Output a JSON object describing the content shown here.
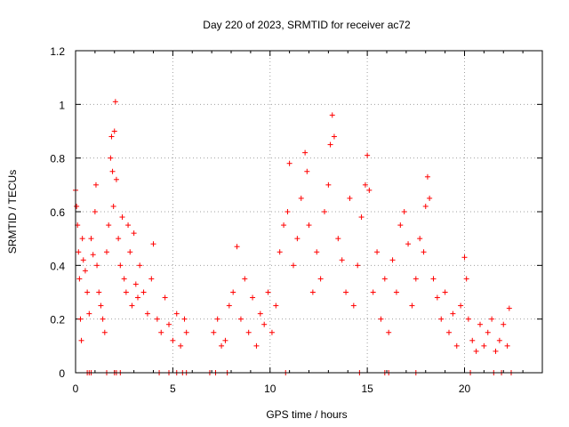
{
  "chart_data": {
    "type": "scatter",
    "title": "Day 220 of 2023, SRMTID for receiver ac72",
    "xlabel": "GPS time / hours",
    "ylabel": "SRMTID / TECUs",
    "xlim": [
      0,
      24
    ],
    "ylim": [
      0,
      1.2
    ],
    "x_ticks": [
      0,
      5,
      10,
      15,
      20
    ],
    "y_ticks": [
      0,
      0.2,
      0.4,
      0.6,
      0.8,
      1,
      1.2
    ],
    "x_tick_labels": [
      "0",
      "5",
      "10",
      "15",
      "20"
    ],
    "y_tick_labels": [
      "0",
      "0.2",
      "0.4",
      "0.6",
      "0.8",
      "1",
      "1.2"
    ],
    "grid": true,
    "marker": "+",
    "series": [
      {
        "name": "SRMTID",
        "color": "#ff0000",
        "description": "Dense scatter of SRMTID samples; approximate envelope points read from plot",
        "points": [
          [
            0.0,
            0.68
          ],
          [
            0.05,
            0.62
          ],
          [
            0.1,
            0.55
          ],
          [
            0.15,
            0.45
          ],
          [
            0.2,
            0.35
          ],
          [
            0.25,
            0.2
          ],
          [
            0.3,
            0.12
          ],
          [
            0.35,
            0.5
          ],
          [
            0.4,
            0.42
          ],
          [
            0.5,
            0.38
          ],
          [
            0.6,
            0.3
          ],
          [
            0.7,
            0.22
          ],
          [
            0.8,
            0.5
          ],
          [
            0.9,
            0.44
          ],
          [
            1.0,
            0.6
          ],
          [
            1.05,
            0.7
          ],
          [
            1.1,
            0.4
          ],
          [
            1.2,
            0.3
          ],
          [
            1.3,
            0.25
          ],
          [
            1.4,
            0.2
          ],
          [
            1.5,
            0.15
          ],
          [
            1.6,
            0.45
          ],
          [
            1.7,
            0.55
          ],
          [
            1.8,
            0.8
          ],
          [
            1.85,
            0.88
          ],
          [
            1.9,
            0.75
          ],
          [
            1.95,
            0.62
          ],
          [
            2.0,
            0.9
          ],
          [
            2.05,
            1.01
          ],
          [
            2.1,
            0.72
          ],
          [
            2.2,
            0.5
          ],
          [
            2.3,
            0.4
          ],
          [
            2.4,
            0.58
          ],
          [
            2.5,
            0.35
          ],
          [
            2.6,
            0.3
          ],
          [
            2.7,
            0.55
          ],
          [
            2.8,
            0.45
          ],
          [
            2.9,
            0.25
          ],
          [
            3.0,
            0.52
          ],
          [
            3.1,
            0.33
          ],
          [
            3.2,
            0.28
          ],
          [
            3.3,
            0.4
          ],
          [
            3.5,
            0.3
          ],
          [
            3.7,
            0.22
          ],
          [
            3.9,
            0.35
          ],
          [
            4.0,
            0.48
          ],
          [
            4.2,
            0.2
          ],
          [
            4.4,
            0.15
          ],
          [
            4.6,
            0.28
          ],
          [
            4.8,
            0.18
          ],
          [
            5.0,
            0.12
          ],
          [
            5.2,
            0.22
          ],
          [
            5.4,
            0.1
          ],
          [
            5.6,
            0.2
          ],
          [
            5.7,
            0.15
          ],
          [
            7.1,
            0.15
          ],
          [
            7.3,
            0.2
          ],
          [
            7.5,
            0.1
          ],
          [
            7.7,
            0.12
          ],
          [
            7.9,
            0.25
          ],
          [
            8.1,
            0.3
          ],
          [
            8.3,
            0.47
          ],
          [
            8.5,
            0.2
          ],
          [
            8.7,
            0.35
          ],
          [
            8.9,
            0.15
          ],
          [
            9.1,
            0.28
          ],
          [
            9.3,
            0.1
          ],
          [
            9.5,
            0.22
          ],
          [
            9.7,
            0.18
          ],
          [
            9.9,
            0.3
          ],
          [
            10.1,
            0.15
          ],
          [
            10.3,
            0.25
          ],
          [
            10.5,
            0.45
          ],
          [
            10.7,
            0.55
          ],
          [
            10.9,
            0.6
          ],
          [
            11.0,
            0.78
          ],
          [
            11.2,
            0.4
          ],
          [
            11.4,
            0.5
          ],
          [
            11.6,
            0.65
          ],
          [
            11.8,
            0.82
          ],
          [
            11.9,
            0.75
          ],
          [
            12.0,
            0.55
          ],
          [
            12.2,
            0.3
          ],
          [
            12.4,
            0.45
          ],
          [
            12.6,
            0.35
          ],
          [
            12.8,
            0.6
          ],
          [
            13.0,
            0.7
          ],
          [
            13.1,
            0.85
          ],
          [
            13.2,
            0.96
          ],
          [
            13.3,
            0.88
          ],
          [
            13.5,
            0.5
          ],
          [
            13.7,
            0.42
          ],
          [
            13.9,
            0.3
          ],
          [
            14.1,
            0.65
          ],
          [
            14.3,
            0.25
          ],
          [
            14.5,
            0.4
          ],
          [
            14.7,
            0.58
          ],
          [
            14.9,
            0.7
          ],
          [
            15.0,
            0.81
          ],
          [
            15.1,
            0.68
          ],
          [
            15.3,
            0.3
          ],
          [
            15.5,
            0.45
          ],
          [
            15.7,
            0.2
          ],
          [
            15.9,
            0.35
          ],
          [
            16.1,
            0.15
          ],
          [
            16.3,
            0.42
          ],
          [
            16.5,
            0.3
          ],
          [
            16.7,
            0.55
          ],
          [
            16.9,
            0.6
          ],
          [
            17.1,
            0.48
          ],
          [
            17.3,
            0.25
          ],
          [
            17.5,
            0.35
          ],
          [
            17.7,
            0.5
          ],
          [
            17.9,
            0.45
          ],
          [
            18.0,
            0.62
          ],
          [
            18.1,
            0.73
          ],
          [
            18.2,
            0.65
          ],
          [
            18.4,
            0.35
          ],
          [
            18.6,
            0.28
          ],
          [
            18.8,
            0.2
          ],
          [
            19.0,
            0.3
          ],
          [
            19.2,
            0.15
          ],
          [
            19.4,
            0.22
          ],
          [
            19.6,
            0.1
          ],
          [
            19.8,
            0.25
          ],
          [
            20.0,
            0.43
          ],
          [
            20.1,
            0.35
          ],
          [
            20.2,
            0.2
          ],
          [
            20.4,
            0.12
          ],
          [
            20.6,
            0.08
          ],
          [
            20.8,
            0.18
          ],
          [
            21.0,
            0.1
          ],
          [
            21.2,
            0.15
          ],
          [
            21.4,
            0.2
          ],
          [
            21.6,
            0.08
          ],
          [
            21.8,
            0.12
          ],
          [
            22.0,
            0.18
          ],
          [
            22.2,
            0.1
          ],
          [
            22.3,
            0.24
          ]
        ],
        "zero_points": [
          0.6,
          0.7,
          0.8,
          1.6,
          2.0,
          2.1,
          2.3,
          4.3,
          4.8,
          5.2,
          5.5,
          5.7,
          6.9,
          7.2,
          7.8,
          10.8,
          14.6,
          15.9,
          16.1,
          17.5,
          20.3,
          21.5,
          21.9,
          22.4
        ]
      }
    ]
  }
}
